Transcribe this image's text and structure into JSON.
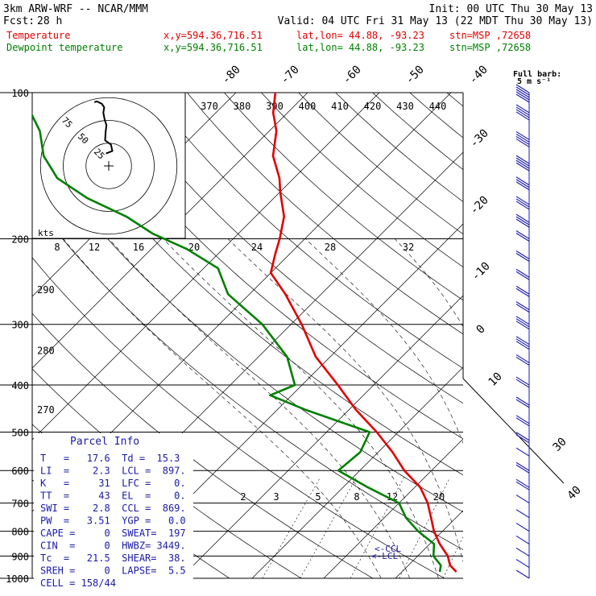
{
  "header": {
    "model": "3km ARW-WRF -- NCAR/MMM",
    "init": "Init: 00 UTC Thu 30 May 13",
    "fcst_label": "Fcst:",
    "fcst_value": "28 h",
    "valid": "Valid: 04 UTC Fri 31 May 13 (22 MDT Thu 30 May 13)",
    "temp_line": {
      "name": "Temperature",
      "xy": "x,y=594.36,716.51",
      "latlon": "lat,lon= 44.88, -93.23",
      "stn": "stn=MSP ,72658",
      "color": "#e00000"
    },
    "dew_line": {
      "name": "Dewpoint temperature",
      "xy": "x,y=594.36,716.51",
      "latlon": "lat,lon= 44.88, -93.23",
      "stn": "stn=MSP ,72658",
      "color": "#008000"
    }
  },
  "barb_legend": {
    "line1": "Full barb:",
    "line2": "5 m s⁻¹"
  },
  "hodograph": {
    "kts_label": "kts",
    "ring_labels": [
      "25",
      "50",
      "75"
    ],
    "speed_ticks": [
      "8",
      "12",
      "16",
      "20",
      "24",
      "28",
      "32"
    ]
  },
  "parcel_info": {
    "title": "Parcel Info",
    "rows": [
      "T   =   17.6  Td =  15.3",
      "LI  =    2.3  LCL =  897.",
      "K   =     31  LFC =    0.",
      "TT  =     43  EL  =    0.",
      "SWI =    2.8  CCL =  869.",
      "PW  =   3.51  YGP =   0.0",
      "CAPE =     0  SWEAT=  197",
      "CIN  =     0  HWBZ= 3449.",
      "Tc  =   21.5  SHEAR=  38.",
      "SREH =     0  LAPSE=  5.5",
      "CELL = 158/44"
    ]
  },
  "markers": {
    "ccl": "<-CCL",
    "lcl": "<-LCL"
  },
  "chart_data": {
    "type": "line",
    "title": "",
    "xlabel": "",
    "ylabel": "",
    "y_scale": "log-pressure",
    "ylim": [
      1000,
      100
    ],
    "pressure_ticks": [
      100,
      200,
      300,
      400,
      500,
      600,
      700,
      800,
      900,
      1000
    ],
    "isotherm_labels": [
      -80,
      -70,
      -60,
      -50,
      -40,
      -30,
      -20,
      -10,
      0,
      10,
      30,
      40
    ],
    "theta_top_labels": [
      "370",
      "380",
      "390",
      "400",
      "410",
      "420",
      "430",
      "440"
    ],
    "theta_side_labels": [
      {
        "label": "290",
        "p": 255
      },
      {
        "label": "280",
        "p": 340
      },
      {
        "label": "270",
        "p": 450
      }
    ],
    "mixing_ratio_labels": [
      "2",
      "3",
      "5",
      "8",
      "12",
      "20"
    ],
    "series": [
      {
        "name": "Temperature",
        "color": "#e00000",
        "points": [
          {
            "p": 970,
            "t": 17.6
          },
          {
            "p": 940,
            "t": 15.8
          },
          {
            "p": 900,
            "t": 14.2
          },
          {
            "p": 850,
            "t": 11.4
          },
          {
            "p": 800,
            "t": 8.8
          },
          {
            "p": 750,
            "t": 6.5
          },
          {
            "p": 700,
            "t": 4.0
          },
          {
            "p": 650,
            "t": 0.8
          },
          {
            "p": 600,
            "t": -3.8
          },
          {
            "p": 550,
            "t": -8.0
          },
          {
            "p": 500,
            "t": -13.0
          },
          {
            "p": 450,
            "t": -19.0
          },
          {
            "p": 400,
            "t": -25.0
          },
          {
            "p": 350,
            "t": -32.0
          },
          {
            "p": 300,
            "t": -38.5
          },
          {
            "p": 260,
            "t": -45.0
          },
          {
            "p": 235,
            "t": -50.0
          },
          {
            "p": 215,
            "t": -52.0
          },
          {
            "p": 200,
            "t": -53.5
          },
          {
            "p": 180,
            "t": -56.0
          },
          {
            "p": 160,
            "t": -60.0
          },
          {
            "p": 150,
            "t": -62.0
          },
          {
            "p": 135,
            "t": -66.0
          },
          {
            "p": 120,
            "t": -69.0
          },
          {
            "p": 110,
            "t": -72.0
          },
          {
            "p": 100,
            "t": -74.5
          }
        ]
      },
      {
        "name": "Dewpoint temperature",
        "color": "#008000",
        "points": [
          {
            "p": 970,
            "t": 15.3
          },
          {
            "p": 940,
            "t": 14.5
          },
          {
            "p": 900,
            "t": 12.2
          },
          {
            "p": 850,
            "t": 10.6
          },
          {
            "p": 800,
            "t": 6.6
          },
          {
            "p": 750,
            "t": 3.0
          },
          {
            "p": 700,
            "t": 0.0
          },
          {
            "p": 650,
            "t": -6.5
          },
          {
            "p": 600,
            "t": -13.0
          },
          {
            "p": 550,
            "t": -12.5
          },
          {
            "p": 500,
            "t": -14.0
          },
          {
            "p": 450,
            "t": -26.0
          },
          {
            "p": 420,
            "t": -33.0
          },
          {
            "p": 400,
            "t": -31.0
          },
          {
            "p": 350,
            "t": -36.0
          },
          {
            "p": 300,
            "t": -44.0
          },
          {
            "p": 260,
            "t": -53.0
          },
          {
            "p": 230,
            "t": -58.0
          },
          {
            "p": 210,
            "t": -65.0
          },
          {
            "p": 195,
            "t": -72.0
          },
          {
            "p": 180,
            "t": -78.0
          },
          {
            "p": 165,
            "t": -86.0
          },
          {
            "p": 150,
            "t": -93.0
          },
          {
            "p": 135,
            "t": -98.0
          },
          {
            "p": 120,
            "t": -102.0
          },
          {
            "p": 100,
            "t": -110.0
          }
        ]
      }
    ],
    "hodograph_points": [
      {
        "u": -0.6,
        "v": 3.5
      },
      {
        "u": 0.8,
        "v": 4.2
      },
      {
        "u": 0.5,
        "v": 6.0
      },
      {
        "u": -0.8,
        "v": 7.2
      },
      {
        "u": -0.7,
        "v": 9.5
      },
      {
        "u": -0.5,
        "v": 11.5
      },
      {
        "u": -0.9,
        "v": 13.0
      },
      {
        "u": -1.2,
        "v": 15.0
      },
      {
        "u": -1.0,
        "v": 16.5
      },
      {
        "u": -1.5,
        "v": 17.5
      },
      {
        "u": -2.6,
        "v": 18.2
      },
      {
        "u": -3.2,
        "v": 18.0
      }
    ],
    "wind_barbs": [
      {
        "p": 100,
        "speed": 25
      },
      {
        "p": 110,
        "speed": 22
      },
      {
        "p": 125,
        "speed": 20
      },
      {
        "p": 140,
        "speed": 20
      },
      {
        "p": 155,
        "speed": 18
      },
      {
        "p": 170,
        "speed": 15
      },
      {
        "p": 185,
        "speed": 15
      },
      {
        "p": 200,
        "speed": 10
      },
      {
        "p": 220,
        "speed": 10
      },
      {
        "p": 240,
        "speed": 10
      },
      {
        "p": 260,
        "speed": 12
      },
      {
        "p": 280,
        "speed": 12
      },
      {
        "p": 300,
        "speed": 15
      },
      {
        "p": 330,
        "speed": 15
      },
      {
        "p": 360,
        "speed": 12
      },
      {
        "p": 400,
        "speed": 10
      },
      {
        "p": 440,
        "speed": 10
      },
      {
        "p": 480,
        "speed": 10
      },
      {
        "p": 520,
        "speed": 10
      },
      {
        "p": 560,
        "speed": 8
      },
      {
        "p": 600,
        "speed": 10
      },
      {
        "p": 650,
        "speed": 10
      },
      {
        "p": 700,
        "speed": 8
      },
      {
        "p": 750,
        "speed": 5
      },
      {
        "p": 800,
        "speed": 5
      },
      {
        "p": 850,
        "speed": 5
      },
      {
        "p": 900,
        "speed": 5
      },
      {
        "p": 950,
        "speed": 5
      },
      {
        "p": 1000,
        "speed": 5
      }
    ],
    "grid": true,
    "legend": "top-left"
  }
}
